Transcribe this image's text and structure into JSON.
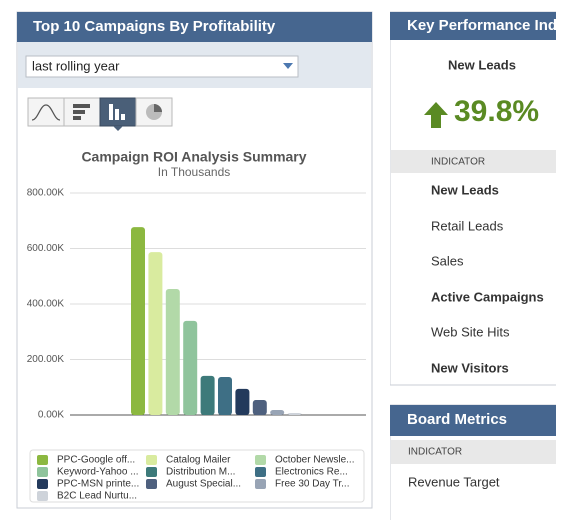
{
  "campaigns_panel": {
    "title": "Top 10 Campaigns By Profitability",
    "period_select": "last rolling year"
  },
  "chart_data": {
    "type": "bar",
    "title": "Campaign ROI Analysis Summary",
    "subtitle": "In Thousands",
    "categories": [
      "PPC-Google off...",
      "Catalog Mailer",
      "October Newsle...",
      "Keyword-Yahoo ...",
      "Distribution M...",
      "Electronics Re...",
      "PPC-MSN printe...",
      "August Special...",
      "Free 30 Day Tr...",
      "B2C Lead Nurtu..."
    ],
    "values": [
      677000,
      587000,
      454000,
      339000,
      141000,
      137000,
      94000,
      54000,
      18000,
      7000
    ],
    "colors": [
      "#8cb840",
      "#d9eb9f",
      "#b2d9a8",
      "#8fc49c",
      "#3d7a7a",
      "#3e6f85",
      "#233a5c",
      "#4e607e",
      "#98a4b5",
      "#ced3da"
    ],
    "ylim": [
      0,
      800000
    ],
    "yticks": [
      {
        "value": 0,
        "label": "0.00K"
      },
      {
        "value": 200000,
        "label": "200.00K"
      },
      {
        "value": 400000,
        "label": "400.00K"
      },
      {
        "value": 600000,
        "label": "600.00K"
      },
      {
        "value": 800000,
        "label": "800.00K"
      }
    ],
    "grid": true,
    "legend": "bottom"
  },
  "kpi_panel": {
    "title": "Key Performance Indi",
    "selected_metric": "New Leads",
    "change": "39.8%",
    "column_header": "INDICATOR",
    "indicators": [
      "New Leads",
      "Retail Leads",
      "Sales",
      "Active Campaigns",
      "Web Site Hits",
      "New Visitors"
    ]
  },
  "board_panel": {
    "title": "Board Metrics",
    "column_header": "INDICATOR",
    "rows": [
      "Revenue Target"
    ]
  }
}
